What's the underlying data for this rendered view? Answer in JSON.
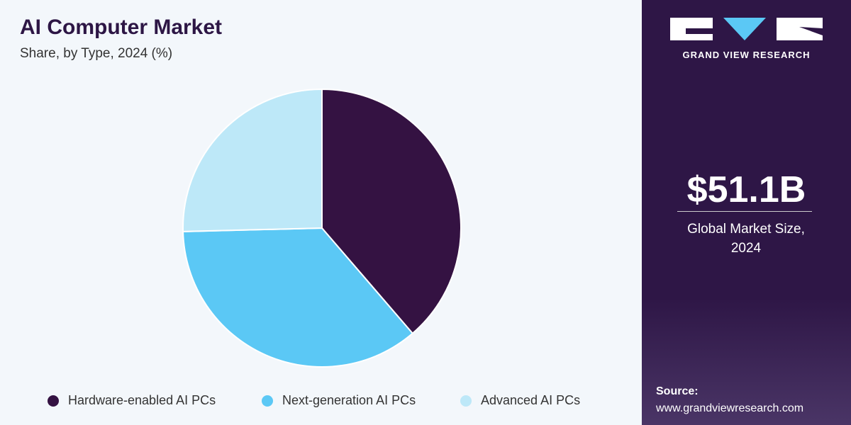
{
  "chart_data": {
    "type": "pie",
    "title": "AI Computer Market",
    "subtitle": "Share, by Type, 2024 (%)",
    "categories": [
      "Hardware-enabled AI PCs",
      "Next-generation AI PCs",
      "Advanced AI PCs"
    ],
    "values": [
      38.7,
      35.9,
      25.4
    ],
    "colors": [
      "#341242",
      "#5bc8f5",
      "#bde8f8"
    ]
  },
  "panel": {
    "brand": "GRAND VIEW RESEARCH",
    "market_size": "$51.1B",
    "market_size_label": "Global Market Size, 2024",
    "source_label": "Source:",
    "source_url": "www.grandviewresearch.com"
  }
}
